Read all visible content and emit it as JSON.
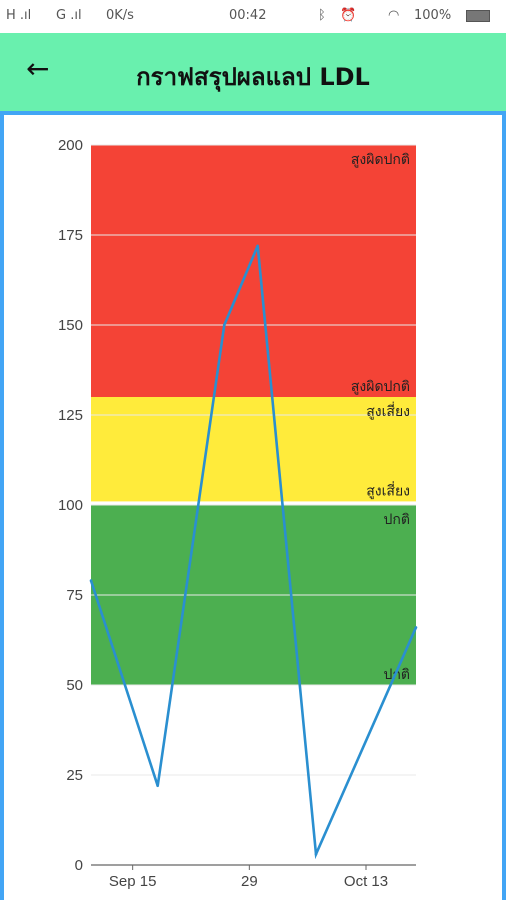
{
  "status_bar": {
    "signal_left": "H .ıl",
    "signal_right": "G .ıl",
    "speed": "0K/s",
    "time": "00:42",
    "battery": "100%"
  },
  "app_bar": {
    "back_icon": "arrow-left-icon",
    "back_glyph": "←",
    "title": "กราฟสรุปผลแลป LDL"
  },
  "colors": {
    "app_bar": "#69f0ae",
    "frame_border": "#42a5f5",
    "band_high_abnormal": "#f44336",
    "band_risk": "#ffeb3b",
    "band_normal": "#4caf50",
    "series_line": "#2a8fd0"
  },
  "chart_data": {
    "type": "line",
    "title": "",
    "xlabel": "",
    "ylabel": "",
    "ylim": [
      0,
      200
    ],
    "yticks": [
      0,
      25,
      50,
      75,
      100,
      125,
      150,
      175,
      200
    ],
    "xlim": [
      "2019-09-10",
      "2019-10-19"
    ],
    "xticks": [
      {
        "date": "2019-09-15",
        "label": "Sep 15"
      },
      {
        "date": "2019-09-29",
        "label": "29"
      },
      {
        "date": "2019-10-13",
        "label": "Oct 13"
      }
    ],
    "grid": true,
    "bands": [
      {
        "from": 130,
        "to": 200,
        "top_label": "สูงผิดปกติ",
        "bottom_label": "สูงผิดปกติ"
      },
      {
        "from": 101,
        "to": 130,
        "top_label": "สูงเสี่ยง",
        "bottom_label": "สูงเสี่ยง"
      },
      {
        "from": 50,
        "to": 100,
        "top_label": "ปกติ",
        "bottom_label": "ปกติ"
      }
    ],
    "series": [
      {
        "x": [
          "2019-09-10",
          "2019-09-18",
          "2019-09-26",
          "2019-09-30",
          "2019-10-07",
          "2019-10-19"
        ],
        "y": [
          79,
          22,
          150,
          172,
          3,
          66
        ]
      }
    ]
  }
}
